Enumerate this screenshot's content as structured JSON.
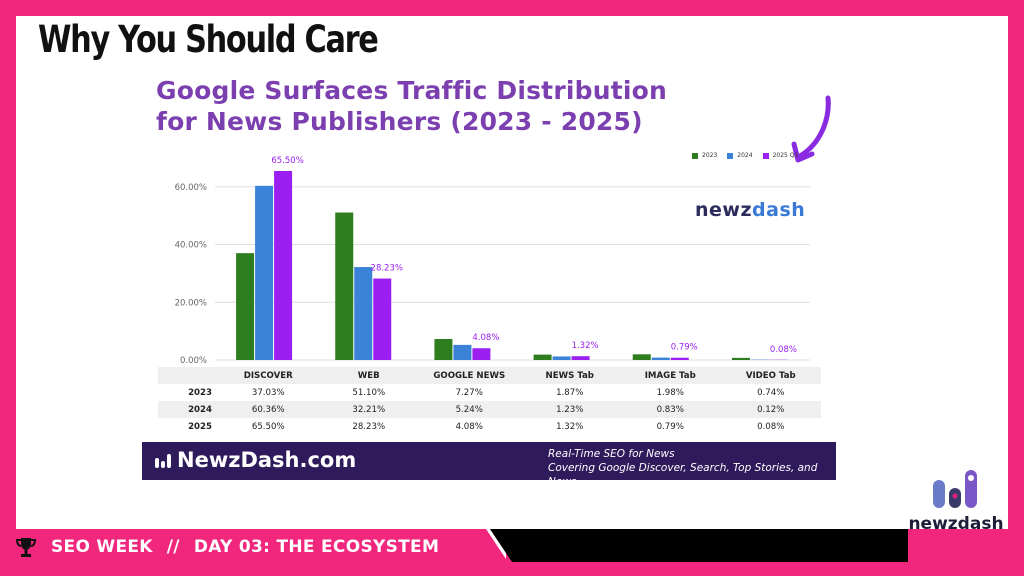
{
  "slide_title": "Why You Should Care",
  "chart_title_line1": "Google Surfaces Traffic Distribution",
  "chart_title_line2": "for News Publishers (2023 - 2025)",
  "chart_brand": {
    "part1": "newz",
    "part2": "dash"
  },
  "colors": {
    "y2023": "#2e7d1f",
    "y2024": "#3b82d9",
    "y2025": "#9b1ff0",
    "accent_pink": "#f0277d",
    "purple_text": "#7b3fb0"
  },
  "chart_data": {
    "type": "bar",
    "title": "Google Surfaces Traffic Distribution for News Publishers (2023 - 2025)",
    "categories": [
      "DISCOVER",
      "WEB",
      "GOOGLE NEWS",
      "NEWS Tab",
      "IMAGE Tab",
      "VIDEO Tab"
    ],
    "series": [
      {
        "name": "2023",
        "values": [
          37.03,
          51.1,
          7.27,
          1.87,
          1.98,
          0.74
        ]
      },
      {
        "name": "2024",
        "values": [
          60.36,
          32.21,
          5.24,
          1.23,
          0.83,
          0.12
        ]
      },
      {
        "name": "2025 Q1",
        "values": [
          65.5,
          28.23,
          4.08,
          1.32,
          0.79,
          0.08
        ]
      }
    ],
    "data_labels": [
      "65.50%",
      "28.23%",
      "4.08%",
      "1.32%",
      "0.79%",
      "0.08%"
    ],
    "yticks": [
      "0.00%",
      "20.00%",
      "40.00%",
      "60.00%"
    ],
    "ylim": [
      0,
      70
    ],
    "grid": true,
    "legend": "top-right"
  },
  "table": {
    "headers": [
      "DISCOVER",
      "WEB",
      "GOOGLE NEWS",
      "NEWS Tab",
      "IMAGE Tab",
      "VIDEO Tab"
    ],
    "rows": [
      {
        "label": "2023",
        "values": [
          "37.03%",
          "51.10%",
          "7.27%",
          "1.87%",
          "1.98%",
          "0.74%"
        ]
      },
      {
        "label": "2024",
        "values": [
          "60.36%",
          "32.21%",
          "5.24%",
          "1.23%",
          "0.83%",
          "0.12%"
        ]
      },
      {
        "label": "2025",
        "values": [
          "65.50%",
          "28.23%",
          "4.08%",
          "1.32%",
          "0.79%",
          "0.08%"
        ]
      }
    ]
  },
  "banner": {
    "site": "NewzDash.com",
    "tag_line1": "Real-Time SEO for News",
    "tag_line2": "Covering Google Discover, Search, Top Stories, and News"
  },
  "corner_brand": "newzdash",
  "footer": {
    "event": "SEO WEEK",
    "sep": "//",
    "day": "DAY 03: THE ECOSYSTEM"
  },
  "icons": {
    "trophy": "trophy-icon",
    "arrow": "curved-arrow-icon"
  }
}
